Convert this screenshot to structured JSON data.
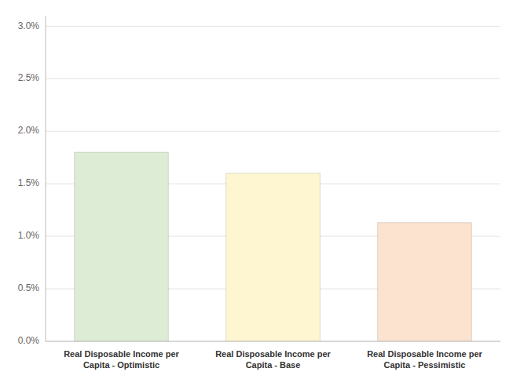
{
  "chart_data": {
    "type": "bar",
    "categories": [
      "Real Disposable Income per\nCapita - Optimistic",
      "Real Disposable Income per\nCapita - Base",
      "Real Disposable Income per\nCapita - Pessimistic"
    ],
    "values": [
      0.018,
      0.016,
      0.0113
    ],
    "colors": [
      "#ddecd4",
      "#fdf6d0",
      "#fbe3d0"
    ],
    "ylim": [
      0.0,
      0.031
    ],
    "yticks": [
      {
        "value": 0.0,
        "label": "0.0%"
      },
      {
        "value": 0.005,
        "label": "0.5%"
      },
      {
        "value": 0.01,
        "label": "1.0%"
      },
      {
        "value": 0.015,
        "label": "1.5%"
      },
      {
        "value": 0.02,
        "label": "2.0%"
      },
      {
        "value": 0.025,
        "label": "2.5%"
      },
      {
        "value": 0.03,
        "label": "3.0%"
      }
    ],
    "grid": true
  }
}
